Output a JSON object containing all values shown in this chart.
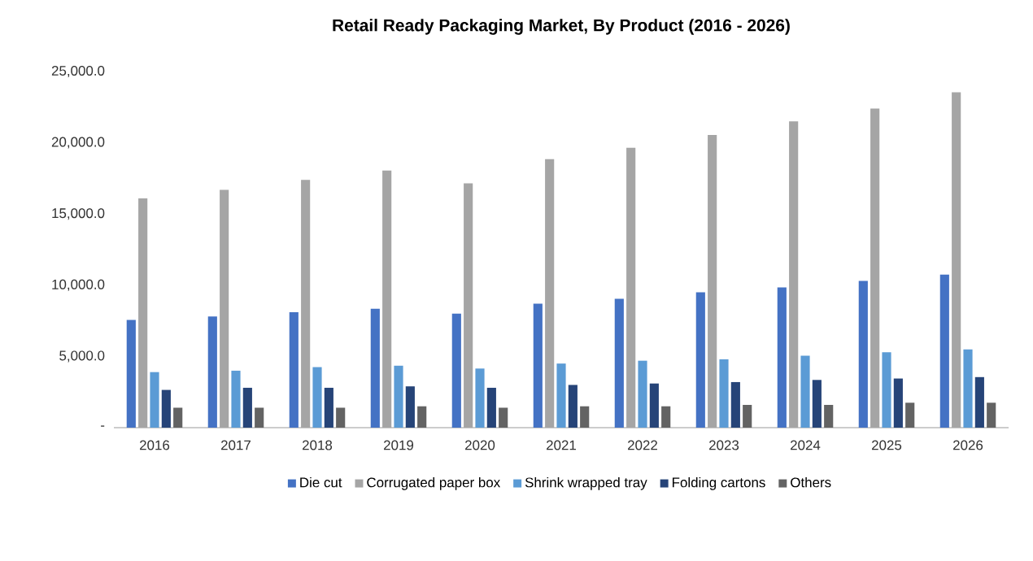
{
  "chart_data": {
    "type": "bar",
    "title": "Retail Ready Packaging Market, By Product (2016 - 2026)",
    "categories": [
      "2016",
      "2017",
      "2018",
      "2019",
      "2020",
      "2021",
      "2022",
      "2023",
      "2024",
      "2025",
      "2026"
    ],
    "series": [
      {
        "name": "Die cut",
        "color": "#4472c4",
        "values": [
          7570,
          7800,
          8100,
          8350,
          8000,
          8700,
          9050,
          9500,
          9850,
          10300,
          10750
        ]
      },
      {
        "name": "Corrugated paper box",
        "color": "#a5a5a5",
        "values": [
          16100,
          16700,
          17400,
          18050,
          17150,
          18850,
          19650,
          20550,
          21500,
          22400,
          23550
        ]
      },
      {
        "name": "Shrink wrapped tray",
        "color": "#5b9bd5",
        "values": [
          3900,
          4000,
          4250,
          4350,
          4150,
          4500,
          4700,
          4800,
          5050,
          5300,
          5500
        ]
      },
      {
        "name": "Folding cartons",
        "color": "#264478",
        "values": [
          2650,
          2800,
          2800,
          2900,
          2800,
          3000,
          3100,
          3200,
          3350,
          3450,
          3550
        ]
      },
      {
        "name": "Others",
        "color": "#636363",
        "values": [
          1400,
          1400,
          1400,
          1500,
          1400,
          1500,
          1500,
          1600,
          1600,
          1750,
          1750
        ]
      }
    ],
    "ylim": [
      0,
      25000
    ],
    "yticks": [
      {
        "value": 0,
        "label": "-"
      },
      {
        "value": 5000,
        "label": "5,000.0"
      },
      {
        "value": 10000,
        "label": "10,000.0"
      },
      {
        "value": 15000,
        "label": "15,000.0"
      },
      {
        "value": 20000,
        "label": "20,000.0"
      },
      {
        "value": 25000,
        "label": "25,000.0"
      }
    ],
    "legend": "bottom"
  }
}
